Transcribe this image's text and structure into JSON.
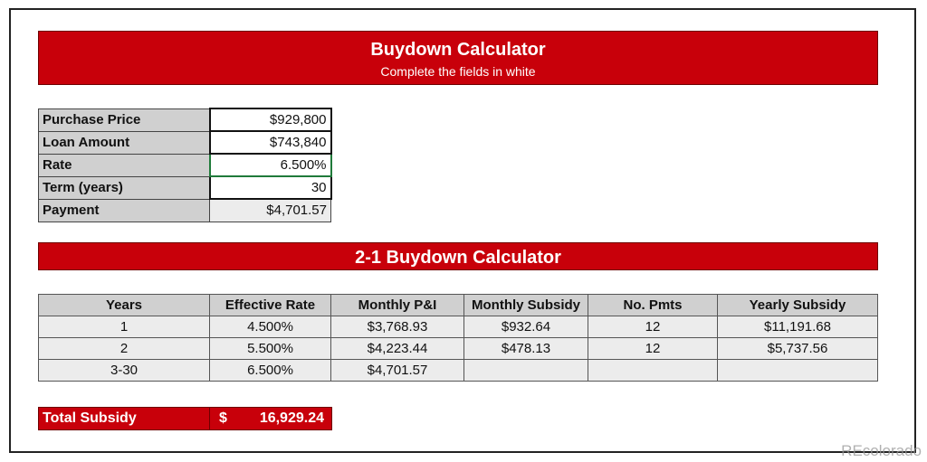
{
  "header": {
    "title": "Buydown Calculator",
    "subtitle": "Complete the fields in white"
  },
  "inputs": [
    {
      "label": "Purchase Price",
      "value": "$929,800"
    },
    {
      "label": "Loan Amount",
      "value": "$743,840"
    },
    {
      "label": "Rate",
      "value": "6.500%"
    },
    {
      "label": "Term (years)",
      "value": "30"
    },
    {
      "label": "Payment",
      "value": "$4,701.57"
    }
  ],
  "buydown": {
    "title": "2-1 Buydown Calculator",
    "columns": [
      "Years",
      "Effective Rate",
      "Monthly P&I",
      "Monthly Subsidy",
      "No. Pmts",
      "Yearly Subsidy"
    ],
    "rows": [
      [
        "1",
        "4.500%",
        "$3,768.93",
        "$932.64",
        "12",
        "$11,191.68"
      ],
      [
        "2",
        "5.500%",
        "$4,223.44",
        "$478.13",
        "12",
        "$5,737.56"
      ],
      [
        "3-30",
        "6.500%",
        "$4,701.57",
        "",
        "",
        ""
      ]
    ]
  },
  "total": {
    "label": "Total Subsidy",
    "currency": "$",
    "value": "16,929.24"
  },
  "watermark": "REcolorado",
  "colors": {
    "accent": "#c8000a",
    "label_bg": "#d0d0d0",
    "cell_bg": "#ececec"
  }
}
